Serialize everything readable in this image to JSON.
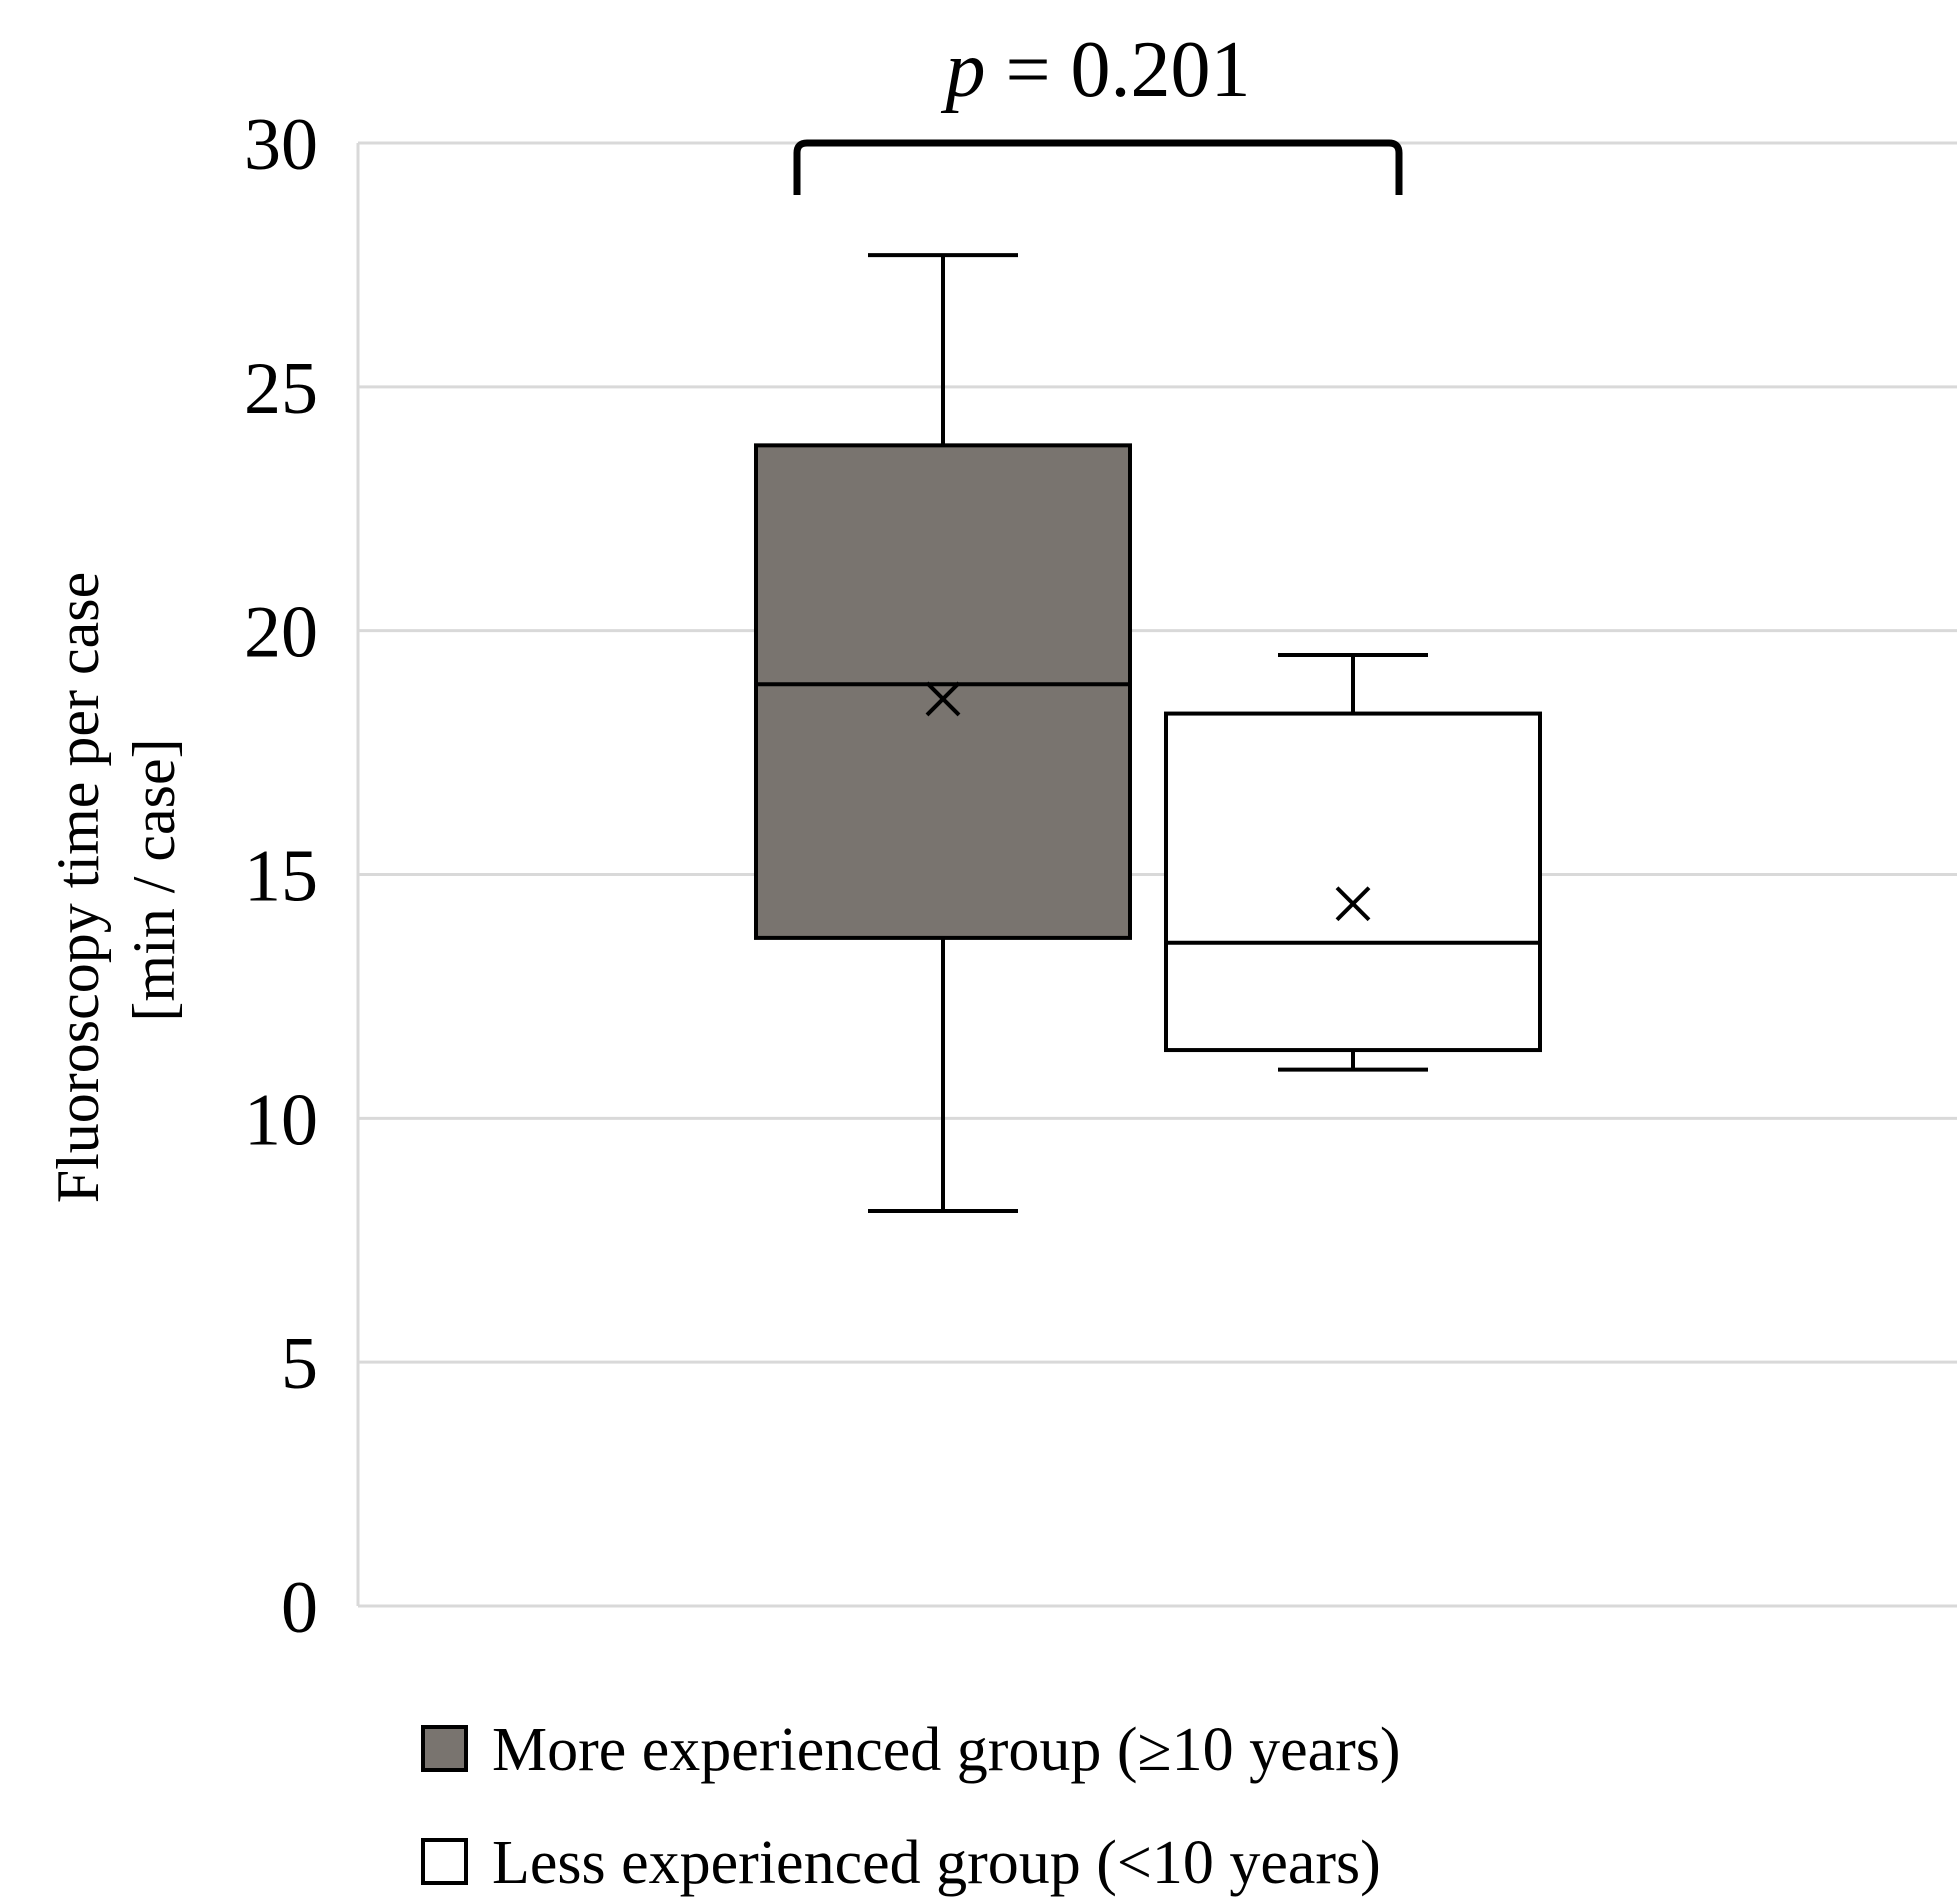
{
  "chart_data": {
    "type": "boxplot",
    "ylabel_line1": "Fluoroscopy time per case",
    "ylabel_line2": "[min / case]",
    "ylim": [
      0,
      30
    ],
    "yticks": [
      0,
      5,
      10,
      15,
      20,
      25,
      30
    ],
    "grid": true,
    "legend_position": "bottom",
    "series": [
      {
        "name": "More experienced group (≥10 years)",
        "color": "#79746F",
        "whisker_min": 8.1,
        "q1": 13.7,
        "median": 18.9,
        "q3": 23.8,
        "whisker_max": 27.7,
        "mean": 18.6
      },
      {
        "name": "Less experienced group (<10 years)",
        "color": "#FFFFFF",
        "whisker_min": 11.0,
        "q1": 11.4,
        "median": 13.6,
        "q3": 18.3,
        "whisker_max": 19.5,
        "mean": 14.4
      }
    ],
    "annotation": {
      "p_symbol": "p",
      "p_value_text": " = 0.201"
    }
  }
}
